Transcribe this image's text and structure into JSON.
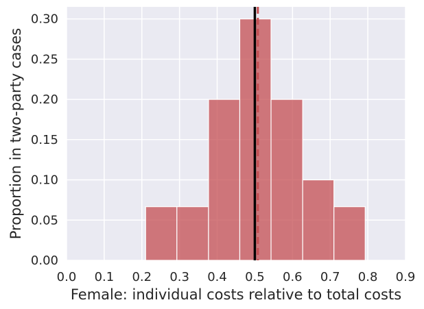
{
  "chart_data": {
    "type": "bar",
    "subtype": "histogram",
    "xlabel": "Female: individual costs relative to total costs",
    "ylabel": "Proportion in two-party cases",
    "xlim": [
      0.0,
      0.9
    ],
    "ylim": [
      0.0,
      0.315
    ],
    "xticks": [
      0.0,
      0.1,
      0.2,
      0.3,
      0.4,
      0.5,
      0.6,
      0.7,
      0.8,
      0.9
    ],
    "xtick_labels": [
      "0.0",
      "0.1",
      "0.2",
      "0.3",
      "0.4",
      "0.5",
      "0.6",
      "0.7",
      "0.8",
      "0.9"
    ],
    "yticks": [
      0.0,
      0.05,
      0.1,
      0.15,
      0.2,
      0.25,
      0.3
    ],
    "ytick_labels": [
      "0.00",
      "0.05",
      "0.10",
      "0.15",
      "0.20",
      "0.25",
      "0.30"
    ],
    "grid": true,
    "bins": [
      {
        "start": 0.21,
        "end": 0.293,
        "value": 0.0667
      },
      {
        "start": 0.293,
        "end": 0.377,
        "value": 0.0667
      },
      {
        "start": 0.377,
        "end": 0.46,
        "value": 0.2
      },
      {
        "start": 0.46,
        "end": 0.543,
        "value": 0.3
      },
      {
        "start": 0.543,
        "end": 0.627,
        "value": 0.2
      },
      {
        "start": 0.627,
        "end": 0.71,
        "value": 0.1
      },
      {
        "start": 0.71,
        "end": 0.793,
        "value": 0.0667
      }
    ],
    "reference_lines": [
      {
        "x": 0.5,
        "style": "solid",
        "color": "#000000"
      },
      {
        "x": 0.508,
        "style": "dashed",
        "color": "#c44e52"
      }
    ],
    "colors": {
      "bar_fill": "#c44e52",
      "bar_edge": "#ffffff",
      "plot_background": "#eaeaf2",
      "grid": "#ffffff"
    }
  }
}
